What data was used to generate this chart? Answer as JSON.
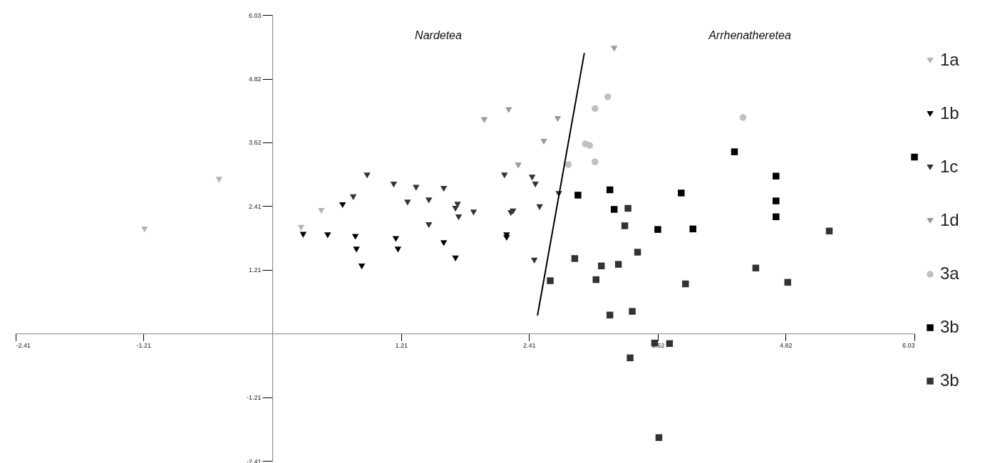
{
  "chart_data": {
    "type": "scatter",
    "annotations": [
      "Nardetea",
      "Arrhenatheretea"
    ],
    "xlim": [
      -2.41,
      6.03
    ],
    "ylim": [
      -2.41,
      6.03
    ],
    "xticks": [
      -2.41,
      -1.21,
      1.21,
      2.41,
      3.62,
      4.82,
      6.03
    ],
    "yticks": [
      -2.41,
      -1.21,
      1.21,
      2.41,
      3.62,
      4.82,
      6.03
    ],
    "grid": false,
    "legend": "right",
    "series": [
      {
        "name": "1a",
        "color": "#b4b4b4",
        "marker": "triangle",
        "x": [
          -1.2,
          -0.5,
          0.27,
          0.46
        ],
        "values": [
          1.97,
          2.91,
          2.0,
          2.32
        ]
      },
      {
        "name": "1b",
        "color": "#000000",
        "marker": "triangle",
        "x": [
          0.66,
          0.29,
          0.52,
          0.78,
          0.79,
          0.84,
          1.16,
          1.18,
          1.61,
          1.72,
          2.2,
          2.2
        ],
        "values": [
          2.43,
          1.87,
          1.86,
          1.83,
          1.59,
          1.27,
          1.79,
          1.59,
          1.71,
          1.42,
          1.86,
          1.81
        ]
      },
      {
        "name": "1c",
        "color": "#333333",
        "marker": "triangle",
        "x": [
          0.89,
          0.76,
          1.14,
          1.35,
          1.61,
          1.27,
          1.47,
          1.74,
          1.72,
          1.75,
          1.89,
          1.47,
          2.18,
          2.44,
          2.47,
          2.51,
          2.24,
          2.26,
          2.46,
          2.69
        ],
        "values": [
          2.99,
          2.58,
          2.82,
          2.76,
          2.74,
          2.48,
          2.52,
          2.44,
          2.36,
          2.2,
          2.29,
          2.05,
          2.99,
          2.95,
          2.82,
          2.39,
          2.28,
          2.31,
          1.38,
          2.64
        ]
      },
      {
        "name": "1d",
        "color": "#999999",
        "marker": "triangle",
        "x": [
          1.99,
          2.22,
          2.55,
          2.31,
          2.68,
          3.21
        ],
        "values": [
          4.04,
          4.23,
          3.63,
          3.18,
          4.06,
          5.39
        ]
      },
      {
        "name": "3a",
        "color": "#c0c0c0",
        "marker": "circle",
        "x": [
          3.15,
          3.03,
          2.94,
          2.98,
          2.78,
          3.03,
          4.42
        ],
        "values": [
          4.48,
          4.26,
          3.59,
          3.56,
          3.2,
          3.25,
          4.09
        ]
      },
      {
        "name": "3b",
        "color": "#000000",
        "marker": "square",
        "x": [
          2.87,
          3.17,
          3.21,
          3.84,
          3.62,
          3.95,
          4.34,
          6.03,
          4.73,
          4.73,
          4.73
        ],
        "values": [
          2.62,
          2.72,
          2.35,
          2.66,
          1.97,
          1.98,
          3.44,
          3.34,
          2.98,
          2.51,
          2.21
        ]
      },
      {
        "name": "3b",
        "color": "#333333",
        "marker": "square",
        "x": [
          3.34,
          3.31,
          3.43,
          2.84,
          3.09,
          3.25,
          2.61,
          3.04,
          3.88,
          3.17,
          3.38,
          3.59,
          3.73,
          3.36,
          3.63,
          5.23,
          4.54,
          4.84
        ],
        "values": [
          2.37,
          2.04,
          1.54,
          1.42,
          1.28,
          1.31,
          1.0,
          1.02,
          0.94,
          0.35,
          0.42,
          -0.18,
          -0.19,
          -0.46,
          -1.97,
          1.94,
          1.24,
          0.97
        ]
      },
      {
        "type": "line",
        "color": "#000000",
        "marker": "none",
        "x": [
          2.49,
          2.93
        ],
        "values": [
          0.34,
          5.31
        ]
      }
    ]
  }
}
